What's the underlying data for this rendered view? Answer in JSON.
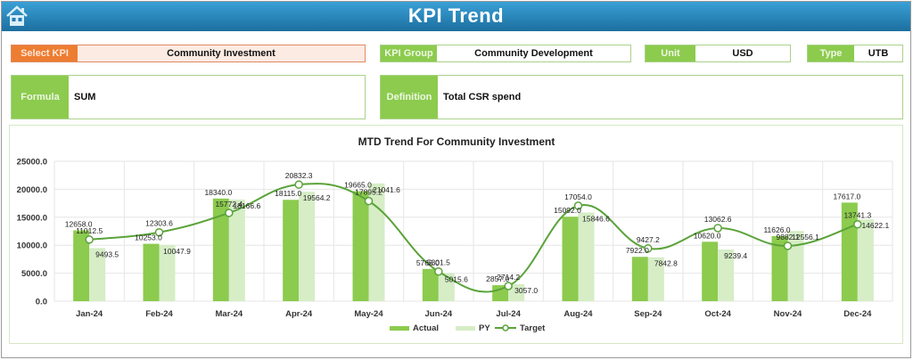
{
  "header": {
    "title": "KPI Trend",
    "home_icon": "home-icon"
  },
  "filters": {
    "select_kpi": {
      "label": "Select KPI",
      "value": "Community Investment"
    },
    "kpi_group": {
      "label": "KPI Group",
      "value": "Community Development"
    },
    "unit": {
      "label": "Unit",
      "value": "USD"
    },
    "type": {
      "label": "Type",
      "value": "UTB"
    }
  },
  "info": {
    "formula": {
      "label": "Formula",
      "value": "SUM"
    },
    "definition": {
      "label": "Definition",
      "value": "Total CSR spend"
    }
  },
  "colors": {
    "actual": "#8ccb4e",
    "py": "#d6edc6",
    "target": "#5aa33a",
    "header": "#1f7bb0",
    "select": "#ed7d31"
  },
  "chart_data": {
    "type": "bar",
    "title": "MTD Trend For Community Investment",
    "xlabel": "",
    "ylabel": "",
    "ylim": [
      0,
      25000
    ],
    "yticks": [
      "0.0",
      "5000.0",
      "10000.0",
      "15000.0",
      "20000.0",
      "25000.0"
    ],
    "grid": true,
    "legend_position": "bottom",
    "categories": [
      "Jan-24",
      "Feb-24",
      "Mar-24",
      "Apr-24",
      "May-24",
      "Jun-24",
      "Jul-24",
      "Aug-24",
      "Sep-24",
      "Oct-24",
      "Nov-24",
      "Dec-24"
    ],
    "series": [
      {
        "name": "Actual",
        "type": "bar",
        "values": [
          12658.0,
          10253.0,
          18340.0,
          18115.0,
          19665.0,
          5768.0,
          2857.0,
          15092.0,
          7922.0,
          10620.0,
          11626.0,
          17617.0
        ]
      },
      {
        "name": "PY",
        "type": "bar",
        "values": [
          9493.5,
          10047.9,
          18166.6,
          19564.2,
          21041.6,
          5015.6,
          3057.0,
          15846.6,
          7842.8,
          9239.4,
          12556.1,
          14622.1
        ]
      },
      {
        "name": "Target",
        "type": "line",
        "values": [
          11012.5,
          12303.6,
          15772.4,
          20832.3,
          17895.2,
          5301.5,
          2714.2,
          17054.0,
          9427.2,
          13062.6,
          9882.1,
          13741.3
        ]
      }
    ]
  }
}
